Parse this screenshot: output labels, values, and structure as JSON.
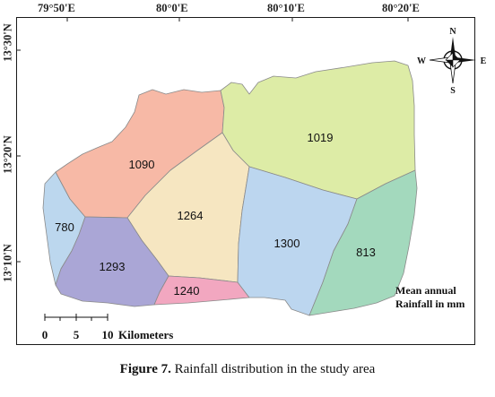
{
  "longitude_labels": [
    "79°50'E",
    "80°0'E",
    "80°10'E",
    "80°20'E"
  ],
  "latitude_labels": [
    "13°30'N",
    "13°20'N",
    "13°10'N"
  ],
  "zones": [
    {
      "id": "780",
      "label": "780",
      "color": "#bcd7ee"
    },
    {
      "id": "1090",
      "label": "1090",
      "color": "#f7b9a6"
    },
    {
      "id": "1019",
      "label": "1019",
      "color": "#ddeca6"
    },
    {
      "id": "1264",
      "label": "1264",
      "color": "#f6e6c1"
    },
    {
      "id": "1293",
      "label": "1293",
      "color": "#aaa6d6"
    },
    {
      "id": "1240",
      "label": "1240",
      "color": "#f2a7c0"
    },
    {
      "id": "1300",
      "label": "1300",
      "color": "#bcd6ef"
    },
    {
      "id": "813",
      "label": "813",
      "color": "#a3d9bd"
    }
  ],
  "compass": {
    "n": "N",
    "s": "S",
    "e": "E",
    "w": "W"
  },
  "legend": {
    "line1": "Mean annual",
    "line2": "Rainfall in mm"
  },
  "scale_bar": {
    "ticks": [
      "0",
      "5",
      "10"
    ],
    "unit": "Kilometers"
  },
  "caption": {
    "label": "Figure 7.",
    "text": " Rainfall distribution in the study area"
  }
}
